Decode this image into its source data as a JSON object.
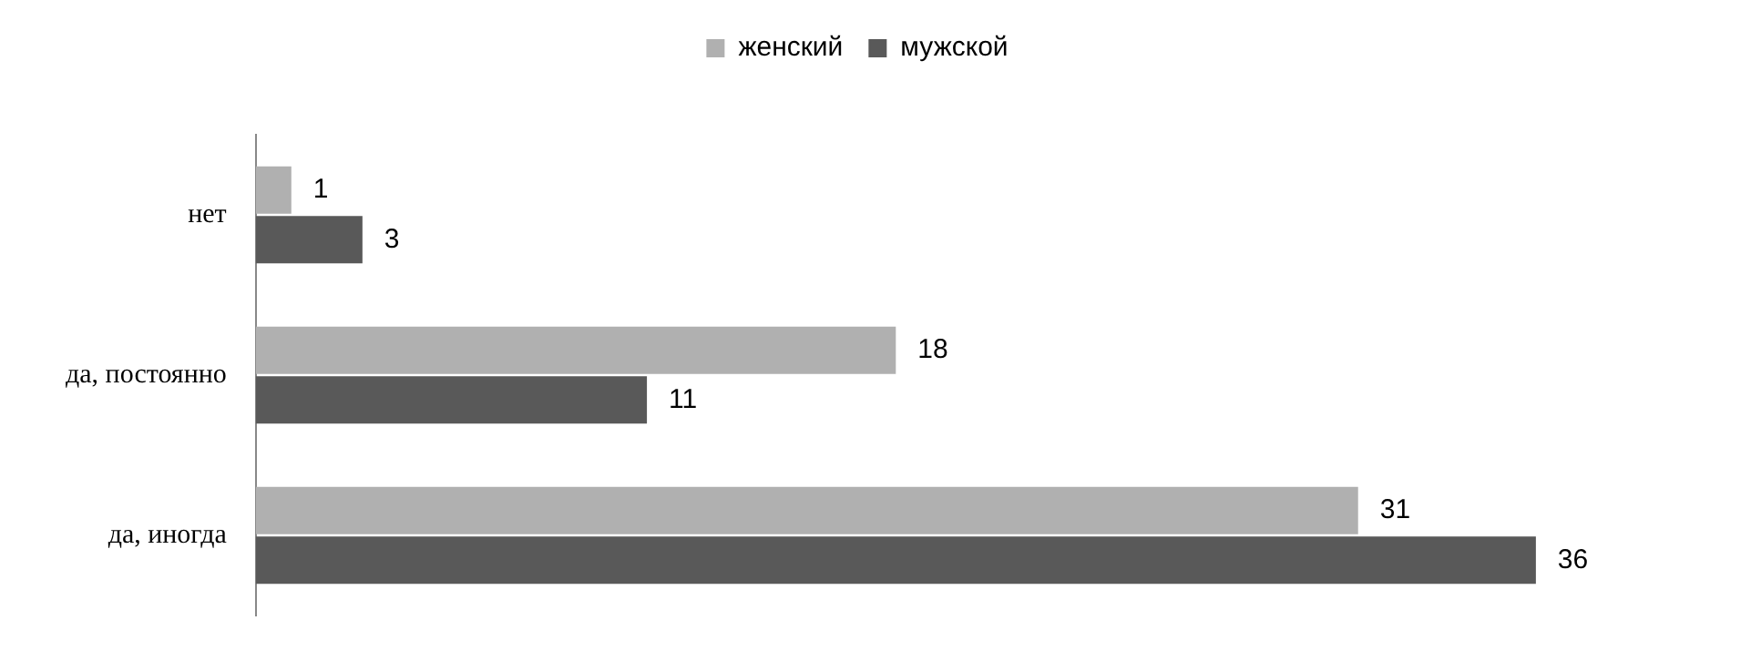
{
  "chart_data": {
    "type": "bar",
    "orientation": "horizontal",
    "categories": [
      "нет",
      "да, постоянно",
      "да, иногда"
    ],
    "series": [
      {
        "name": "женский",
        "color": "#b0b0b0",
        "values": [
          1,
          18,
          31
        ]
      },
      {
        "name": "мужской",
        "color": "#595959",
        "values": [
          3,
          11,
          36
        ]
      }
    ],
    "data_labels": true,
    "legend": "top"
  }
}
